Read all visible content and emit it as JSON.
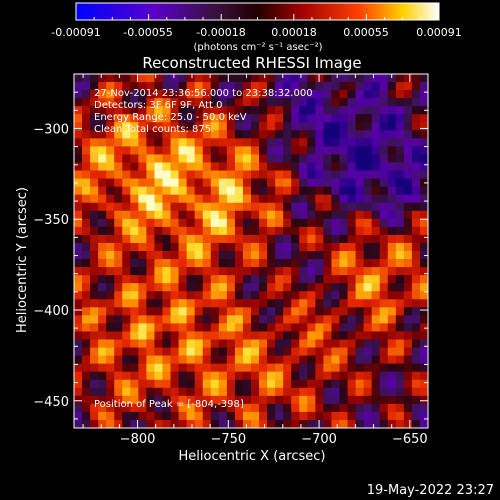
{
  "colorbar": {
    "ticks": [
      "-0.00091",
      "-0.00055",
      "-0.00018",
      "0.00018",
      "0.00055",
      "0.00091"
    ],
    "unit_label": "(photons cm⁻² s⁻¹ asec⁻²)"
  },
  "title": "Reconstructed RHESSI Image",
  "annotations": {
    "time": "27-Nov-2014 23:36:56.000 to 23:38:32.000",
    "detectors": "Detectors: 3F 6F 9F, Att 0",
    "energy": "Energy Range: 25.0 - 50.0 keV",
    "method": "Clean    Total counts: 875.",
    "peak": "Position of Peak = [-804,-398]"
  },
  "axes": {
    "xlabel": "Heliocentric X (arcsec)",
    "ylabel": "Heliocentric Y (arcsec)",
    "xticks": [
      -800,
      -750,
      -700,
      -650
    ],
    "yticks": [
      -300,
      -350,
      -400,
      -450
    ],
    "xticklabels": [
      "−800",
      "−750",
      "−700",
      "−650"
    ],
    "yticklabels": [
      "−300",
      "−350",
      "−400",
      "−450"
    ],
    "xlim": [
      -835,
      -640
    ],
    "ylim": [
      -465,
      -270
    ]
  },
  "timestamp": "19-May-2022 23:27"
}
